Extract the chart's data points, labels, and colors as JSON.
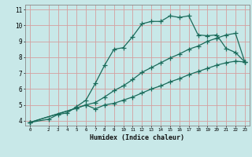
{
  "xlabel": "Humidex (Indice chaleur)",
  "bg_color": "#c8e8e8",
  "grid_color": "#d4a0a0",
  "line_color": "#1a6b5a",
  "xlim": [
    -0.5,
    23.5
  ],
  "ylim": [
    3.7,
    11.3
  ],
  "xticks": [
    0,
    2,
    3,
    4,
    5,
    6,
    7,
    8,
    9,
    10,
    11,
    12,
    13,
    14,
    15,
    16,
    17,
    18,
    19,
    20,
    21,
    22,
    23
  ],
  "yticks": [
    4,
    5,
    6,
    7,
    8,
    9,
    10,
    11
  ],
  "line1_x": [
    0,
    2,
    3,
    4,
    5,
    6,
    7,
    8,
    9,
    10,
    11,
    12,
    13,
    14,
    15,
    16,
    17,
    18,
    19,
    20,
    21,
    22,
    23
  ],
  "line1_y": [
    3.9,
    4.1,
    4.4,
    4.5,
    4.9,
    5.3,
    6.35,
    7.5,
    8.5,
    8.6,
    9.3,
    10.1,
    10.25,
    10.25,
    10.6,
    10.5,
    10.6,
    9.4,
    9.35,
    9.4,
    8.55,
    8.3,
    7.7
  ],
  "line2_x": [
    0,
    5,
    6,
    7,
    8,
    9,
    10,
    11,
    12,
    13,
    14,
    15,
    16,
    17,
    18,
    19,
    20,
    21,
    22,
    23
  ],
  "line2_y": [
    3.9,
    4.8,
    5.0,
    5.15,
    5.5,
    5.9,
    6.2,
    6.6,
    7.05,
    7.35,
    7.65,
    7.95,
    8.2,
    8.5,
    8.7,
    9.0,
    9.2,
    9.4,
    9.5,
    7.7
  ],
  "line3_x": [
    0,
    5,
    6,
    7,
    8,
    9,
    10,
    11,
    12,
    13,
    14,
    15,
    16,
    17,
    18,
    19,
    20,
    21,
    22,
    23
  ],
  "line3_y": [
    3.9,
    4.8,
    5.0,
    4.75,
    5.0,
    5.1,
    5.3,
    5.5,
    5.75,
    6.0,
    6.2,
    6.45,
    6.65,
    6.9,
    7.1,
    7.3,
    7.5,
    7.65,
    7.75,
    7.7
  ]
}
